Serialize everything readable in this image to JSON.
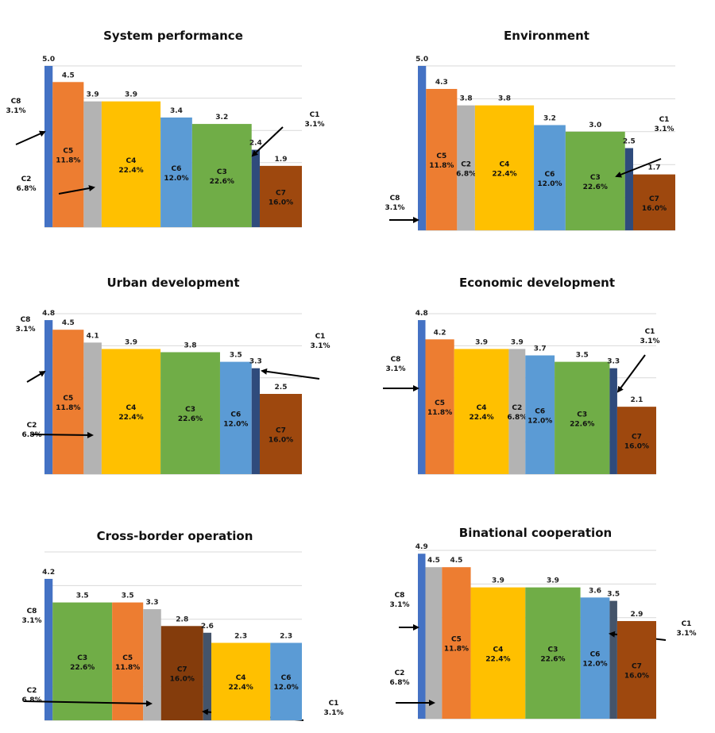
{
  "colors": {
    "C1": "#2f4b7c",
    "C2": "#b3b3b3",
    "C3": "#70ad47",
    "C4": "#ffc000",
    "C5": "#ed7d31",
    "C6": "#5b9bd5",
    "C7": "#9e480e",
    "C8": "#4472c4",
    "C7_dark": "#843c0c",
    "C1_alt": "#44546a"
  },
  "chart_data": [
    {
      "type": "bar",
      "title": "System performance",
      "bars": [
        {
          "code": "C8",
          "value": 5.0,
          "value_label": "5.0",
          "weight_label": "3.1%",
          "weight": 3.1
        },
        {
          "code": "C5",
          "value": 4.5,
          "value_label": "4.5",
          "weight_label": "11.8%",
          "weight": 11.8
        },
        {
          "code": "C2",
          "value": 3.9,
          "value_label": "3.9",
          "weight_label": "6.8%",
          "weight": 6.8
        },
        {
          "code": "C4",
          "value": 3.9,
          "value_label": "3.9",
          "weight_label": "22.4%",
          "weight": 22.4
        },
        {
          "code": "C6",
          "value": 3.4,
          "value_label": "3.4",
          "weight_label": "12.0%",
          "weight": 12.0
        },
        {
          "code": "C3",
          "value": 3.2,
          "value_label": "3.2",
          "weight_label": "22.6%",
          "weight": 22.6
        },
        {
          "code": "C1",
          "value": 2.4,
          "value_label": "2.4",
          "weight_label": "3.1%",
          "weight": 3.1
        },
        {
          "code": "C7",
          "value": 1.9,
          "value_label": "1.9",
          "weight_label": "16.0%",
          "weight": 16.0
        }
      ]
    },
    {
      "type": "bar",
      "title": "Environment",
      "bars": [
        {
          "code": "C8",
          "value": 5.0,
          "value_label": "5.0",
          "weight_label": "3.1%",
          "weight": 3.1
        },
        {
          "code": "C5",
          "value": 4.3,
          "value_label": "4.3",
          "weight_label": "11.8%",
          "weight": 11.8
        },
        {
          "code": "C2",
          "value": 3.8,
          "value_label": "3.8",
          "weight_label": "6.8%",
          "weight": 6.8
        },
        {
          "code": "C4",
          "value": 3.8,
          "value_label": "3.8",
          "weight_label": "22.4%",
          "weight": 22.4
        },
        {
          "code": "C6",
          "value": 3.2,
          "value_label": "3.2",
          "weight_label": "12.0%",
          "weight": 12.0
        },
        {
          "code": "C3",
          "value": 3.0,
          "value_label": "3.0",
          "weight_label": "22.6%",
          "weight": 22.6
        },
        {
          "code": "C1",
          "value": 2.5,
          "value_label": "2.5",
          "weight_label": "3.1%",
          "weight": 3.1
        },
        {
          "code": "C7",
          "value": 1.7,
          "value_label": "1.7",
          "weight_label": "16.0%",
          "weight": 16.0
        }
      ]
    },
    {
      "type": "bar",
      "title": "Urban development",
      "bars": [
        {
          "code": "C8",
          "value": 4.8,
          "value_label": "4.8",
          "weight_label": "3.1%",
          "weight": 3.1
        },
        {
          "code": "C5",
          "value": 4.5,
          "value_label": "4.5",
          "weight_label": "11.8%",
          "weight": 11.8
        },
        {
          "code": "C2",
          "value": 4.1,
          "value_label": "4.1",
          "weight_label": "6.8%",
          "weight": 6.8
        },
        {
          "code": "C4",
          "value": 3.9,
          "value_label": "3.9",
          "weight_label": "22.4%",
          "weight": 22.4
        },
        {
          "code": "C3",
          "value": 3.8,
          "value_label": "3.8",
          "weight_label": "22.6%",
          "weight": 22.6
        },
        {
          "code": "C6",
          "value": 3.5,
          "value_label": "3.5",
          "weight_label": "12.0%",
          "weight": 12.0
        },
        {
          "code": "C1",
          "value": 3.3,
          "value_label": "3.3",
          "weight_label": "3.1%",
          "weight": 3.1
        },
        {
          "code": "C7",
          "value": 2.5,
          "value_label": "2.5",
          "weight_label": "16.0%",
          "weight": 16.0
        }
      ]
    },
    {
      "type": "bar",
      "title": "Economic development",
      "bars": [
        {
          "code": "C8",
          "value": 4.8,
          "value_label": "4.8",
          "weight_label": "3.1%",
          "weight": 3.1
        },
        {
          "code": "C5",
          "value": 4.2,
          "value_label": "4.2",
          "weight_label": "11.8%",
          "weight": 11.8
        },
        {
          "code": "C4",
          "value": 3.9,
          "value_label": "3.9",
          "weight_label": "22.4%",
          "weight": 22.4
        },
        {
          "code": "C2",
          "value": 3.9,
          "value_label": "3.9",
          "weight_label": "6.8%",
          "weight": 6.8
        },
        {
          "code": "C6",
          "value": 3.7,
          "value_label": "3.7",
          "weight_label": "12.0%",
          "weight": 12.0
        },
        {
          "code": "C3",
          "value": 3.5,
          "value_label": "3.5",
          "weight_label": "22.6%",
          "weight": 22.6
        },
        {
          "code": "C1",
          "value": 3.3,
          "value_label": "3.3",
          "weight_label": "3.1%",
          "weight": 3.1
        },
        {
          "code": "C7",
          "value": 2.1,
          "value_label": "2.1",
          "weight_label": "16.0%",
          "weight": 16.0
        }
      ]
    },
    {
      "type": "bar",
      "title": "Cross-border operation",
      "bars": [
        {
          "code": "C8",
          "value": 4.2,
          "value_label": "4.2",
          "weight_label": "3.1%",
          "weight": 3.1
        },
        {
          "code": "C3",
          "value": 3.5,
          "value_label": "3.5",
          "weight_label": "22.6%",
          "weight": 22.6
        },
        {
          "code": "C5",
          "value": 3.5,
          "value_label": "3.5",
          "weight_label": "11.8%",
          "weight": 11.8
        },
        {
          "code": "C2",
          "value": 3.3,
          "value_label": "3.3",
          "weight_label": "6.8%",
          "weight": 6.8
        },
        {
          "code": "C7",
          "value": 2.8,
          "value_label": "2.8",
          "weight_label": "16.0%",
          "weight": 16.0
        },
        {
          "code": "C1",
          "value": 2.6,
          "value_label": "2.6",
          "weight_label": "3.1%",
          "weight": 3.1
        },
        {
          "code": "C4",
          "value": 2.3,
          "value_label": "2.3",
          "weight_label": "22.4%",
          "weight": 22.4
        },
        {
          "code": "C6",
          "value": 2.3,
          "value_label": "2.3",
          "weight_label": "12.0%",
          "weight": 12.0
        }
      ]
    },
    {
      "type": "bar",
      "title": "Binational cooperation",
      "bars": [
        {
          "code": "C8",
          "value": 4.9,
          "value_label": "4.9",
          "weight_label": "3.1%",
          "weight": 3.1
        },
        {
          "code": "C2",
          "value": 4.5,
          "value_label": "4.5",
          "weight_label": "6.8%",
          "weight": 6.8
        },
        {
          "code": "C5",
          "value": 4.5,
          "value_label": "4.5",
          "weight_label": "11.8%",
          "weight": 11.8
        },
        {
          "code": "C4",
          "value": 3.9,
          "value_label": "3.9",
          "weight_label": "22.4%",
          "weight": 22.4
        },
        {
          "code": "C3",
          "value": 3.9,
          "value_label": "3.9",
          "weight_label": "22.6%",
          "weight": 22.6
        },
        {
          "code": "C6",
          "value": 3.6,
          "value_label": "3.6",
          "weight_label": "12.0%",
          "weight": 12.0
        },
        {
          "code": "C1",
          "value": 3.5,
          "value_label": "3.5",
          "weight_label": "3.1%",
          "weight": 3.1
        },
        {
          "code": "C7",
          "value": 2.9,
          "value_label": "2.9",
          "weight_label": "16.0%",
          "weight": 16.0
        }
      ]
    }
  ]
}
